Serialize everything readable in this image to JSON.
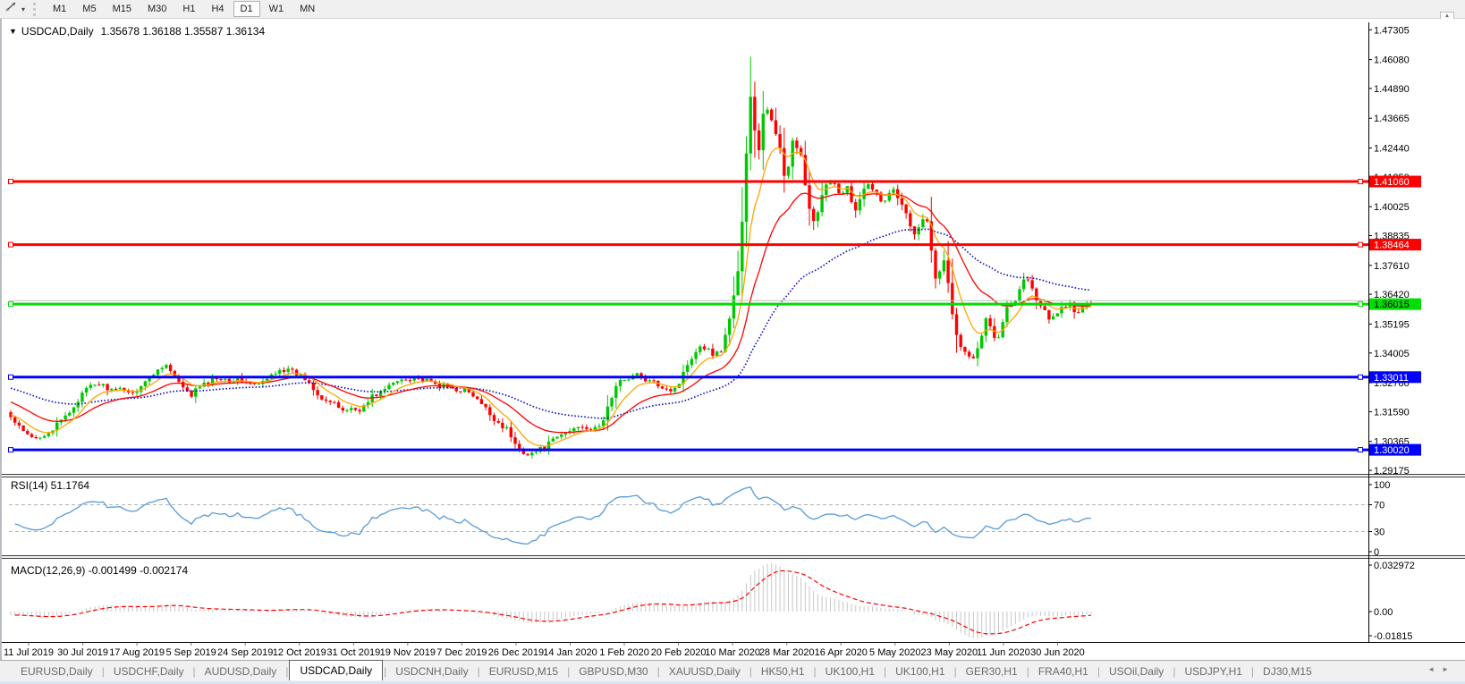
{
  "toolbar": {
    "timeframes": [
      "M1",
      "M5",
      "M15",
      "M30",
      "H1",
      "H4",
      "D1",
      "W1",
      "MN"
    ],
    "active_timeframe": "D1",
    "dropdown_glyph": "▾",
    "scroll_up_glyph": "▲"
  },
  "window": {
    "title_symbol": "USDCAD,Daily",
    "title_ohlc": "1.35678 1.36188 1.35587 1.36134",
    "title_marker": "▼"
  },
  "chart_data": {
    "type": "candlestick",
    "symbol": "USDCAD",
    "timeframe": "Daily",
    "ohlc": {
      "open": 1.35678,
      "high": 1.36188,
      "low": 1.35587,
      "close": 1.36134
    },
    "main": {
      "bull_color": "#00C800",
      "bear_color": "#FF0000",
      "axis": {
        "price_at_top": 1.4761,
        "price_at_bottom": 1.2903,
        "y_ticks": [
          "1.47305",
          "1.46080",
          "1.44890",
          "1.43665",
          "1.42440",
          "1.41250",
          "1.40025",
          "1.38835",
          "1.37610",
          "1.36420",
          "1.35195",
          "1.34005",
          "1.32780",
          "1.31590",
          "1.30365",
          "1.29175"
        ]
      },
      "moving_averages": [
        {
          "name": "ema-fast",
          "period": 8,
          "color": "#FFA500",
          "style": "solid",
          "seed": 1.315
        },
        {
          "name": "ema-mid",
          "period": 21,
          "color": "#FF0000",
          "style": "solid",
          "seed": 1.3205
        },
        {
          "name": "ema-slow",
          "period": 55,
          "color": "#0000C8",
          "style": "dotted",
          "seed": 1.326
        }
      ],
      "horizontal_lines": [
        {
          "label": "1.41060",
          "price": 1.4106,
          "color": "#FF0000",
          "text_color": "#FFFFFF",
          "role": "resistance"
        },
        {
          "label": "1.38464",
          "price": 1.38464,
          "color": "#FF0000",
          "text_color": "#FFFFFF",
          "role": "resistance"
        },
        {
          "label": "1.36015",
          "price": 1.36015,
          "color": "#00DD00",
          "text_color": "#000000",
          "role": "bid-line"
        },
        {
          "label": "1.33011",
          "price": 1.33011,
          "color": "#0000FF",
          "text_color": "#FFFFFF",
          "role": "support"
        },
        {
          "label": "1.30020",
          "price": 1.3002,
          "color": "#0000FF",
          "text_color": "#FFFFFF",
          "role": "support"
        }
      ],
      "ask_line": {
        "price": 1.3616,
        "color": "#C0C0C0"
      },
      "close_path": [
        [
          0,
          1.3135
        ],
        [
          8,
          1.3098
        ],
        [
          16,
          1.3068
        ],
        [
          26,
          1.3044
        ],
        [
          36,
          1.3066
        ],
        [
          46,
          1.3082
        ],
        [
          56,
          1.312
        ],
        [
          66,
          1.3158
        ],
        [
          76,
          1.3212
        ],
        [
          86,
          1.3255
        ],
        [
          96,
          1.3275
        ],
        [
          106,
          1.3262
        ],
        [
          116,
          1.324
        ],
        [
          126,
          1.3256
        ],
        [
          136,
          1.3232
        ],
        [
          146,
          1.327
        ],
        [
          156,
          1.3302
        ],
        [
          166,
          1.3338
        ],
        [
          172,
          1.336
        ],
        [
          178,
          1.3328
        ],
        [
          186,
          1.3288
        ],
        [
          194,
          1.3244
        ],
        [
          202,
          1.3226
        ],
        [
          210,
          1.3262
        ],
        [
          218,
          1.3272
        ],
        [
          226,
          1.3292
        ],
        [
          234,
          1.3302
        ],
        [
          244,
          1.3288
        ],
        [
          254,
          1.3292
        ],
        [
          264,
          1.328
        ],
        [
          274,
          1.3266
        ],
        [
          284,
          1.3282
        ],
        [
          292,
          1.3312
        ],
        [
          300,
          1.3336
        ],
        [
          308,
          1.333
        ],
        [
          316,
          1.332
        ],
        [
          324,
          1.3306
        ],
        [
          332,
          1.3288
        ],
        [
          340,
          1.325
        ],
        [
          348,
          1.3216
        ],
        [
          356,
          1.32
        ],
        [
          364,
          1.3182
        ],
        [
          372,
          1.3165
        ],
        [
          380,
          1.3172
        ],
        [
          388,
          1.3166
        ],
        [
          396,
          1.3182
        ],
        [
          404,
          1.3222
        ],
        [
          412,
          1.3236
        ],
        [
          420,
          1.3256
        ],
        [
          428,
          1.3276
        ],
        [
          436,
          1.3292
        ],
        [
          444,
          1.3296
        ],
        [
          452,
          1.3302
        ],
        [
          460,
          1.329
        ],
        [
          468,
          1.328
        ],
        [
          476,
          1.327
        ],
        [
          484,
          1.3262
        ],
        [
          492,
          1.3256
        ],
        [
          500,
          1.325
        ],
        [
          508,
          1.3246
        ],
        [
          516,
          1.3226
        ],
        [
          524,
          1.3196
        ],
        [
          532,
          1.3166
        ],
        [
          540,
          1.313
        ],
        [
          548,
          1.3106
        ],
        [
          556,
          1.3082
        ],
        [
          564,
          1.3022
        ],
        [
          572,
          1.2996
        ],
        [
          580,
          1.2986
        ],
        [
          588,
          1.2996
        ],
        [
          596,
          1.3012
        ],
        [
          604,
          1.3032
        ],
        [
          612,
          1.3056
        ],
        [
          620,
          1.307
        ],
        [
          628,
          1.3086
        ],
        [
          636,
          1.3106
        ],
        [
          644,
          1.3096
        ],
        [
          652,
          1.3082
        ],
        [
          660,
          1.3102
        ],
        [
          668,
          1.3182
        ],
        [
          676,
          1.3256
        ],
        [
          684,
          1.3292
        ],
        [
          692,
          1.3302
        ],
        [
          700,
          1.3312
        ],
        [
          708,
          1.3292
        ],
        [
          716,
          1.328
        ],
        [
          724,
          1.327
        ],
        [
          732,
          1.326
        ],
        [
          740,
          1.3246
        ],
        [
          748,
          1.3282
        ],
        [
          756,
          1.3352
        ],
        [
          764,
          1.3402
        ],
        [
          772,
          1.3436
        ],
        [
          780,
          1.3412
        ],
        [
          788,
          1.3392
        ],
        [
          796,
          1.3422
        ],
        [
          802,
          1.352
        ],
        [
          808,
          1.3622
        ],
        [
          814,
          1.3762
        ],
        [
          819,
          1.4
        ],
        [
          823,
          1.4252
        ],
        [
          827,
          1.4462
        ],
        [
          831,
          1.435
        ],
        [
          835,
          1.4182
        ],
        [
          839,
          1.4302
        ],
        [
          843,
          1.444
        ],
        [
          847,
          1.4392
        ],
        [
          851,
          1.436
        ],
        [
          855,
          1.4302
        ],
        [
          859,
          1.427
        ],
        [
          863,
          1.4152
        ],
        [
          867,
          1.4082
        ],
        [
          871,
          1.4222
        ],
        [
          875,
          1.43
        ],
        [
          879,
          1.4252
        ],
        [
          883,
          1.4222
        ],
        [
          887,
          1.4122
        ],
        [
          891,
          1.4022
        ],
        [
          895,
          1.3962
        ],
        [
          899,
          1.3922
        ],
        [
          903,
          1.3982
        ],
        [
          907,
          1.4042
        ],
        [
          911,
          1.4082
        ],
        [
          915,
          1.4102
        ],
        [
          919,
          1.4122
        ],
        [
          923,
          1.4082
        ],
        [
          927,
          1.4052
        ],
        [
          931,
          1.4072
        ],
        [
          935,
          1.4092
        ],
        [
          939,
          1.4032
        ],
        [
          943,
          1.3972
        ],
        [
          947,
          1.4002
        ],
        [
          951,
          1.4042
        ],
        [
          955,
          1.4082
        ],
        [
          959,
          1.4092
        ],
        [
          963,
          1.4086
        ],
        [
          967,
          1.4062
        ],
        [
          971,
          1.4032
        ],
        [
          975,
          1.4012
        ],
        [
          979,
          1.4042
        ],
        [
          983,
          1.4072
        ],
        [
          987,
          1.4082
        ],
        [
          991,
          1.4052
        ],
        [
          995,
          1.4032
        ],
        [
          999,
          1.3992
        ],
        [
          1003,
          1.3952
        ],
        [
          1007,
          1.3922
        ],
        [
          1011,
          1.3892
        ],
        [
          1015,
          1.3912
        ],
        [
          1019,
          1.3952
        ],
        [
          1023,
          1.3982
        ],
        [
          1027,
          1.3902
        ],
        [
          1031,
          1.3782
        ],
        [
          1035,
          1.3692
        ],
        [
          1039,
          1.3732
        ],
        [
          1043,
          1.3782
        ],
        [
          1047,
          1.3722
        ],
        [
          1051,
          1.3612
        ],
        [
          1055,
          1.3502
        ],
        [
          1059,
          1.3452
        ],
        [
          1063,
          1.3422
        ],
        [
          1067,
          1.3402
        ],
        [
          1071,
          1.3382
        ],
        [
          1075,
          1.3362
        ],
        [
          1079,
          1.3402
        ],
        [
          1083,
          1.3442
        ],
        [
          1087,
          1.3502
        ],
        [
          1091,
          1.3562
        ],
        [
          1095,
          1.3522
        ],
        [
          1099,
          1.3472
        ],
        [
          1103,
          1.3442
        ],
        [
          1107,
          1.3502
        ],
        [
          1111,
          1.3562
        ],
        [
          1115,
          1.3592
        ],
        [
          1119,
          1.3602
        ],
        [
          1123,
          1.3612
        ],
        [
          1127,
          1.3662
        ],
        [
          1131,
          1.3702
        ],
        [
          1135,
          1.3716
        ],
        [
          1139,
          1.3692
        ],
        [
          1143,
          1.3652
        ],
        [
          1147,
          1.3622
        ],
        [
          1151,
          1.3592
        ],
        [
          1155,
          1.3576
        ],
        [
          1159,
          1.3552
        ],
        [
          1163,
          1.3526
        ],
        [
          1167,
          1.3552
        ],
        [
          1171,
          1.3576
        ],
        [
          1175,
          1.3586
        ],
        [
          1179,
          1.3596
        ],
        [
          1183,
          1.3606
        ],
        [
          1187,
          1.3582
        ],
        [
          1191,
          1.3556
        ],
        [
          1195,
          1.3572
        ],
        [
          1199,
          1.3592
        ],
        [
          1203,
          1.3606
        ],
        [
          1207,
          1.3602
        ],
        [
          1210,
          1.3613
        ]
      ]
    },
    "x_axis": {
      "labels": [
        "11 Jul 2019",
        "30 Jul 2019",
        "17 Aug 2019",
        "5 Sep 2019",
        "24 Sep 2019",
        "12 Oct 2019",
        "31 Oct 2019",
        "19 Nov 2019",
        "7 Dec 2019",
        "26 Dec 2019",
        "14 Jan 2020",
        "1 Feb 2020",
        "20 Feb 2020",
        "10 Mar 2020",
        "28 Mar 2020",
        "16 Apr 2020",
        "5 May 2020",
        "23 May 2020",
        "11 Jun 2020",
        "30 Jun 2020"
      ]
    },
    "rsi": {
      "label": "RSI(14) 51.1764",
      "period": 14,
      "value": 51.1764,
      "line_color": "#569AD9",
      "levels": [
        70,
        30
      ],
      "axis_labels": [
        "100",
        "70",
        "30",
        "0"
      ]
    },
    "macd": {
      "label": "MACD(12,26,9) -0.001499 -0.002174",
      "fast": 12,
      "slow": 26,
      "signal_period": 9,
      "macd_value": -0.001499,
      "signal_value": -0.002174,
      "histogram_color": "#C6C6C6",
      "signal_color": "#FF0000",
      "axis_labels": [
        "0.032972",
        "0.00",
        "-0.01815"
      ]
    }
  },
  "tabs": {
    "items": [
      "EURUSD,Daily",
      "USDCHF,Daily",
      "AUDUSD,Daily",
      "USDCAD,Daily",
      "USDCNH,Daily",
      "EURUSD,M15",
      "GBPUSD,M30",
      "XAUUSD,Daily",
      "HK50,H1",
      "UK100,H1",
      "UK100,H1",
      "GER30,H1",
      "FRA40,H1",
      "USOil,Daily",
      "USDJPY,H1",
      "DJ30,M15"
    ],
    "active_index": 3,
    "prev_glyph": "◄",
    "next_glyph": "►"
  }
}
